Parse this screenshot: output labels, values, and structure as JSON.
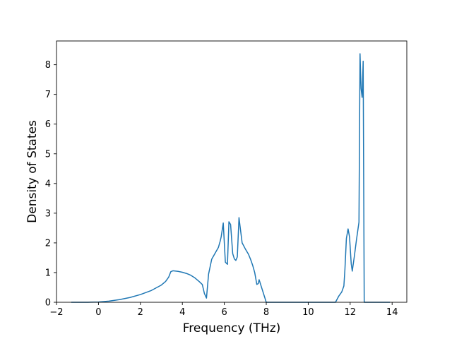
{
  "chart_data": {
    "type": "line",
    "title": "",
    "xlabel": "Frequency (THz)",
    "ylabel": "Density of States",
    "xlim": [
      -2,
      14.7
    ],
    "ylim": [
      0,
      8.8
    ],
    "xticks": [
      -2,
      0,
      2,
      4,
      6,
      8,
      10,
      12,
      14
    ],
    "yticks": [
      0,
      1,
      2,
      3,
      4,
      5,
      6,
      7,
      8
    ],
    "xtick_labels": [
      "−2",
      "0",
      "2",
      "4",
      "6",
      "8",
      "10",
      "12",
      "14"
    ],
    "ytick_labels": [
      "0",
      "1",
      "2",
      "3",
      "4",
      "5",
      "6",
      "7",
      "8"
    ],
    "grid": false,
    "line_color": "#1f77b4",
    "series": [
      {
        "x": [
          -1.3,
          -0.5,
          0,
          0.5,
          1.0,
          1.5,
          2.0,
          2.5,
          3.0,
          3.2,
          3.35,
          3.45,
          3.55,
          3.8,
          4.0,
          4.2,
          4.4,
          4.6,
          4.8,
          4.95,
          5.05,
          5.15,
          5.25,
          5.4,
          5.6,
          5.72,
          5.8,
          5.85,
          5.95,
          6.05,
          6.15,
          6.22,
          6.3,
          6.4,
          6.48,
          6.55,
          6.62,
          6.7,
          6.85,
          7.0,
          7.15,
          7.25,
          7.35,
          7.45,
          7.55,
          7.62,
          7.66,
          8.0,
          9.0,
          10.0,
          11.0,
          11.3,
          11.45,
          11.6,
          11.7,
          11.75,
          11.82,
          11.9,
          11.97,
          12.05,
          12.1,
          12.2,
          12.3,
          12.42,
          12.47,
          12.52,
          12.57,
          12.62,
          12.67,
          12.72,
          13.0,
          13.9
        ],
        "y": [
          0,
          0,
          0.01,
          0.04,
          0.09,
          0.16,
          0.26,
          0.39,
          0.58,
          0.7,
          0.85,
          1.03,
          1.06,
          1.04,
          1.01,
          0.97,
          0.91,
          0.82,
          0.7,
          0.6,
          0.3,
          0.14,
          0.95,
          1.45,
          1.7,
          1.85,
          2.05,
          2.2,
          2.67,
          1.35,
          1.28,
          2.71,
          2.62,
          1.64,
          1.46,
          1.41,
          1.53,
          2.85,
          2.0,
          1.8,
          1.62,
          1.45,
          1.25,
          1.0,
          0.6,
          0.63,
          0.76,
          0,
          0,
          0,
          0,
          0,
          0.2,
          0.35,
          0.55,
          1.1,
          2.15,
          2.47,
          2.2,
          1.3,
          1.05,
          1.55,
          2.1,
          2.7,
          8.37,
          7.2,
          6.9,
          8.12,
          0,
          0,
          0,
          0
        ]
      }
    ]
  }
}
